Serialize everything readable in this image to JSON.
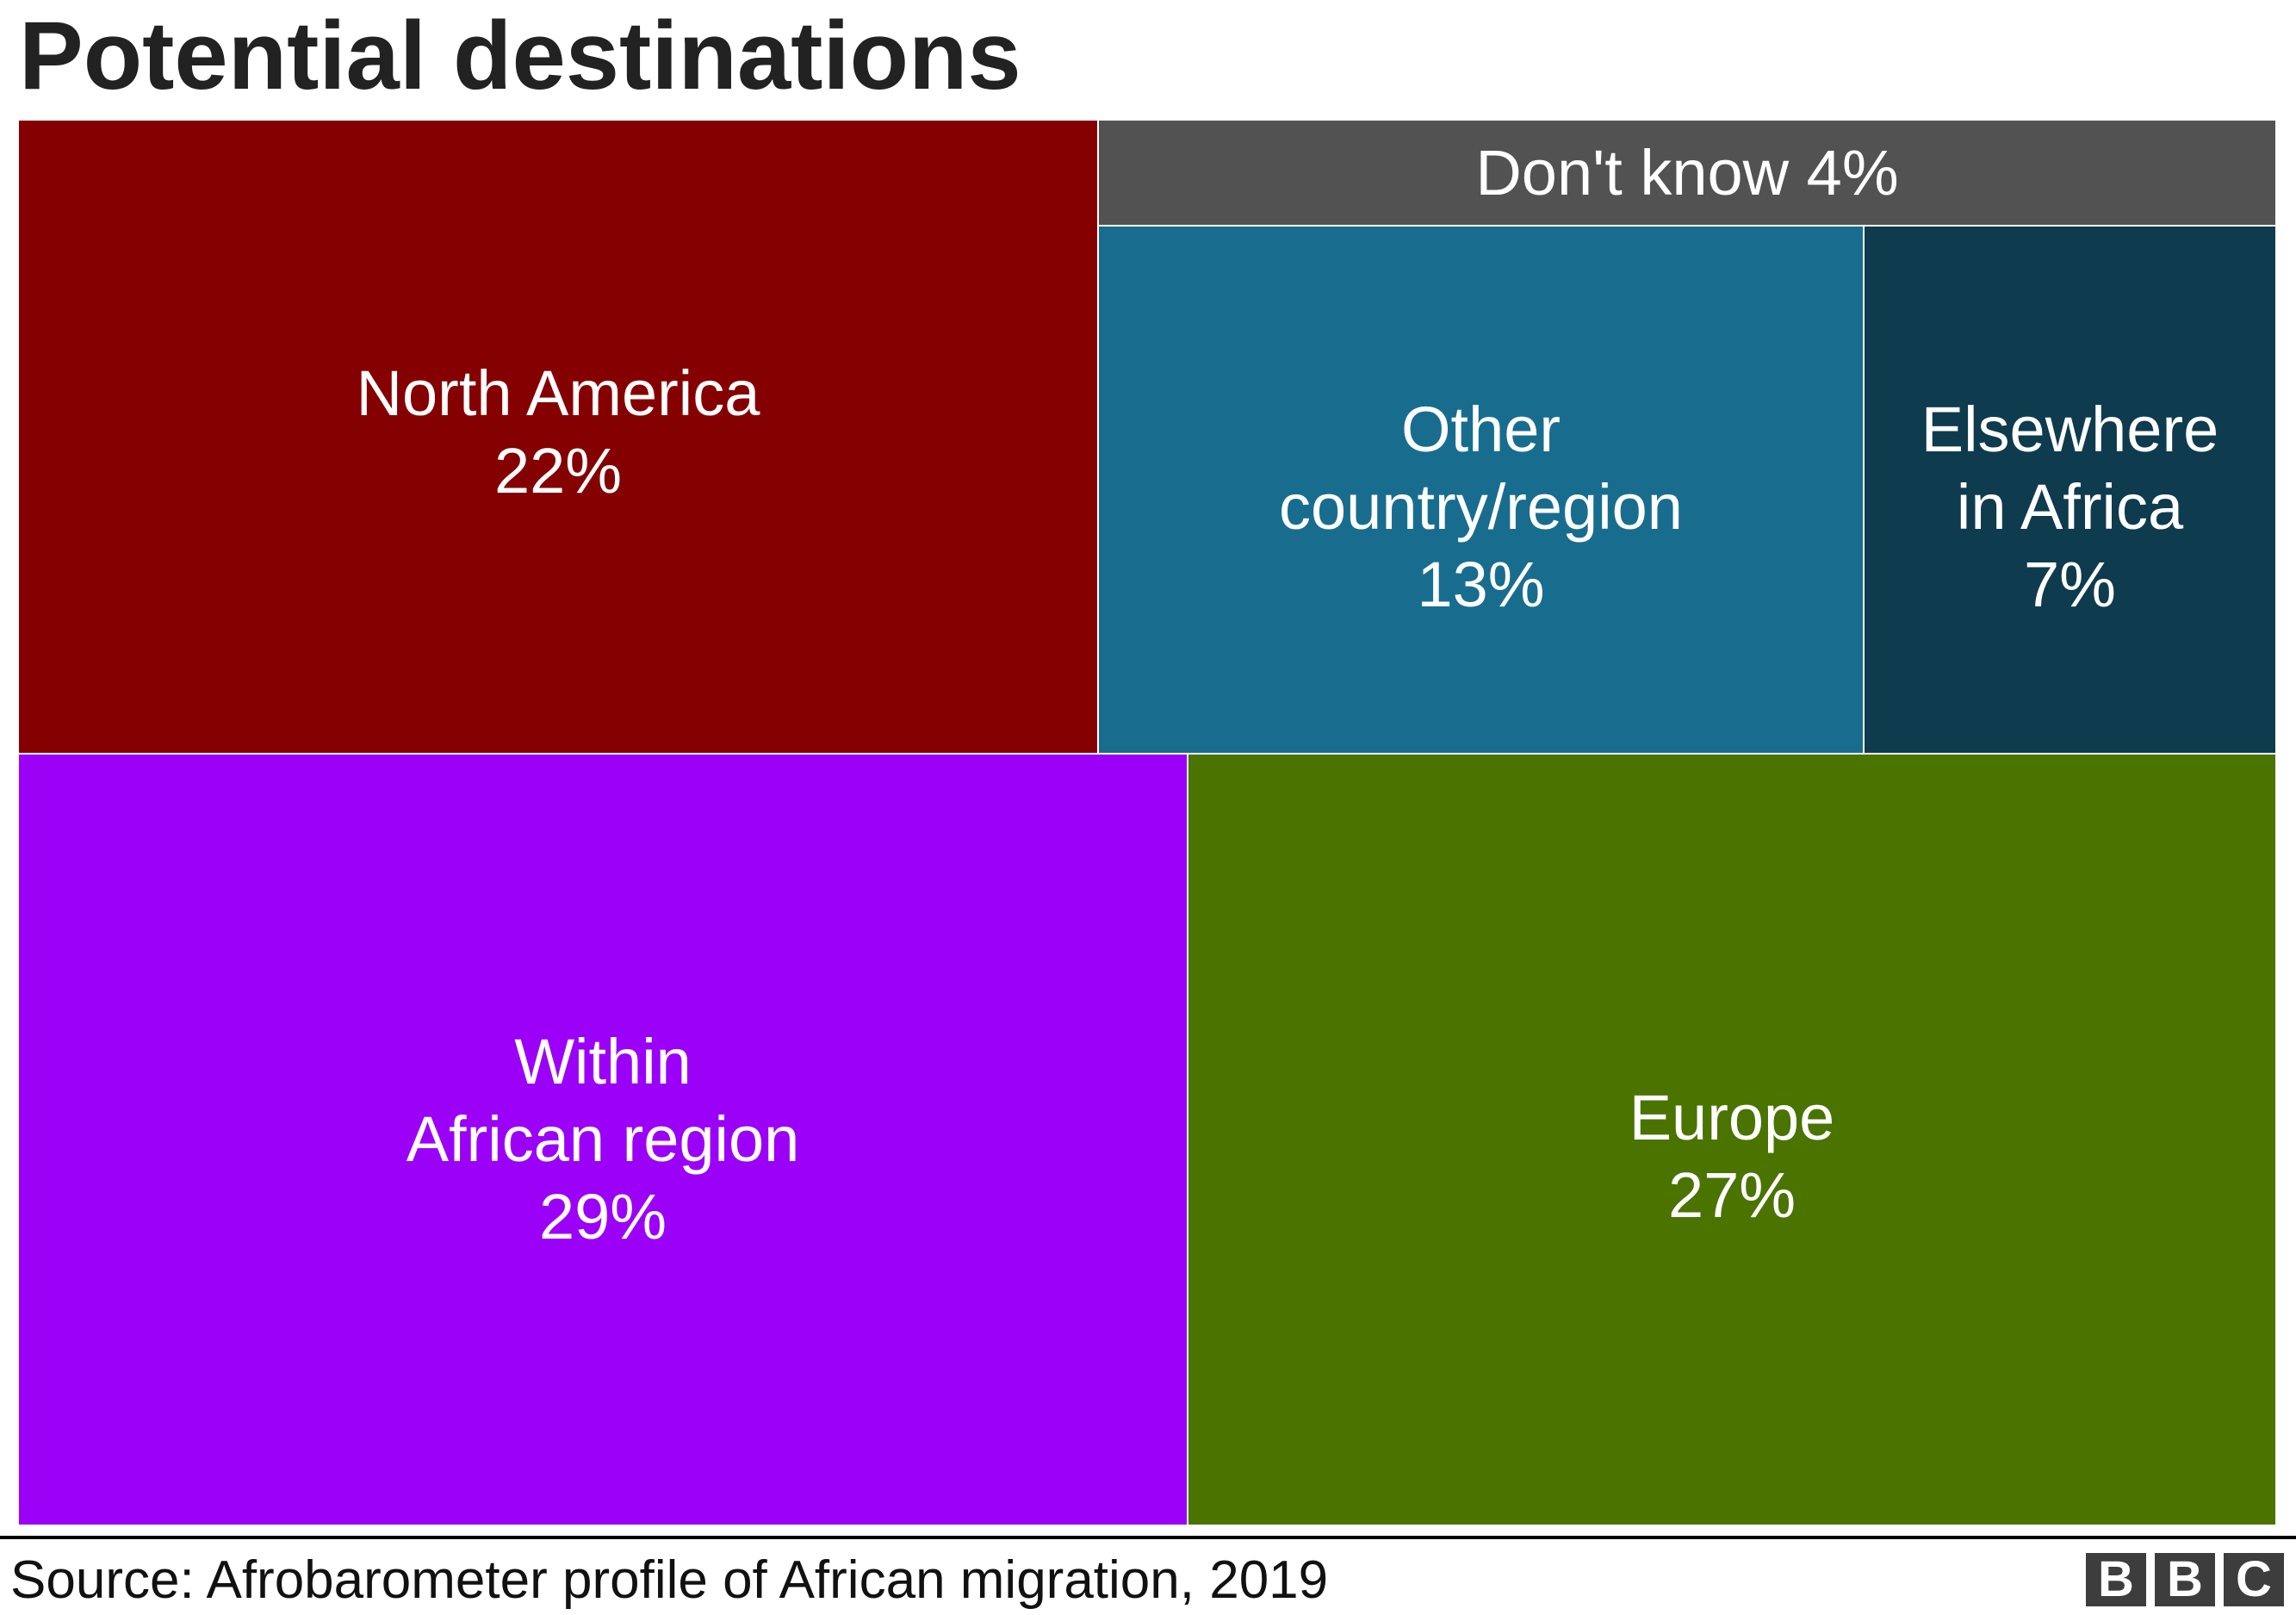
{
  "chart_data": {
    "type": "treemap",
    "title": "Potential destinations",
    "items": [
      {
        "name": "Within African region",
        "label": "Within\nAfrican region\n29%",
        "value": 29,
        "color": "#9b00f7"
      },
      {
        "name": "Europe",
        "label": "Europe\n27%",
        "value": 27,
        "color": "#4a7300"
      },
      {
        "name": "North America",
        "label": "North America\n22%",
        "value": 22,
        "color": "#850000"
      },
      {
        "name": "Other country/region",
        "label": "Other\ncountry/region\n13%",
        "value": 13,
        "color": "#186d8f"
      },
      {
        "name": "Elsewhere in Africa",
        "label": "Elsewhere\nin Africa\n7%",
        "value": 7,
        "color": "#0e3b4e"
      },
      {
        "name": "Don't know",
        "label": "Don't know 4%",
        "value": 4,
        "color": "#525252"
      }
    ],
    "source": "Source: Afrobarometer profile of African migration, 2019"
  },
  "branding": {
    "logo_letters": [
      "B",
      "B",
      "C"
    ]
  }
}
